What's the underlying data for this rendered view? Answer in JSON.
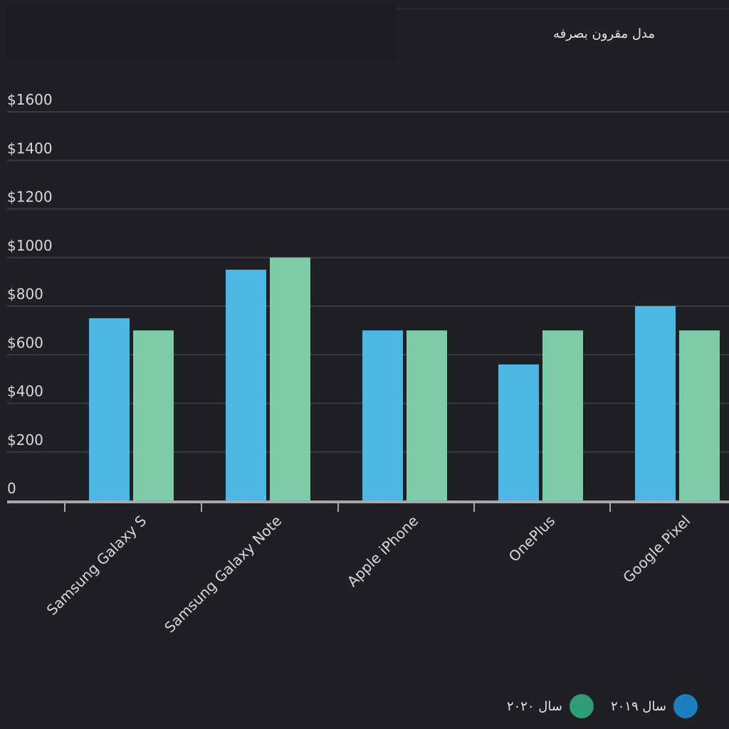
{
  "chart_data": {
    "type": "bar",
    "title": "مدل مقرون بصرفه",
    "categories": [
      "Samsung Galaxy S",
      "Samsung Galaxy Note",
      "Apple iPhone",
      "OnePlus",
      "Google Pixel"
    ],
    "series": [
      {
        "name": "سال ۲۰۱۹",
        "values": [
          750,
          950,
          700,
          560,
          800
        ]
      },
      {
        "name": "سال ۲۰۲۰",
        "values": [
          700,
          1000,
          700,
          700,
          700
        ]
      }
    ],
    "ylim": [
      0,
      1600
    ],
    "yticks": [
      0,
      200,
      400,
      600,
      800,
      1000,
      1200,
      1400,
      1600
    ],
    "ytick_labels": [
      "0",
      "$200",
      "$400",
      "$600",
      "$800",
      "$1000",
      "$1200",
      "$1400",
      "$1600"
    ],
    "grid": true,
    "legend_position": "bottom-right",
    "colors": {
      "bar": [
        "#4bb8e6",
        "#7ecbaa"
      ],
      "legend": [
        "#1e7fc0",
        "#2e9c74"
      ],
      "grid": "#3a3b3f",
      "axis": "#a8a8a8",
      "text": "#d9d9d9"
    }
  }
}
